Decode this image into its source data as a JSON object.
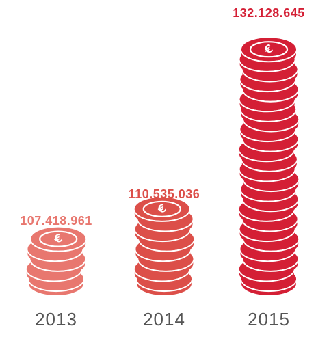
{
  "chart_data": {
    "type": "bar",
    "categories": [
      "2013",
      "2014",
      "2015"
    ],
    "values": [
      107418961,
      110535036,
      132128645
    ],
    "value_labels": [
      "107.418.961",
      "110.535.036",
      "132.128.645"
    ],
    "coin_counts": [
      5,
      8,
      24
    ],
    "currency_symbol": "€",
    "colors": [
      "#e8776f",
      "#dc4f49",
      "#d41f35"
    ],
    "year_color": "#555555"
  }
}
